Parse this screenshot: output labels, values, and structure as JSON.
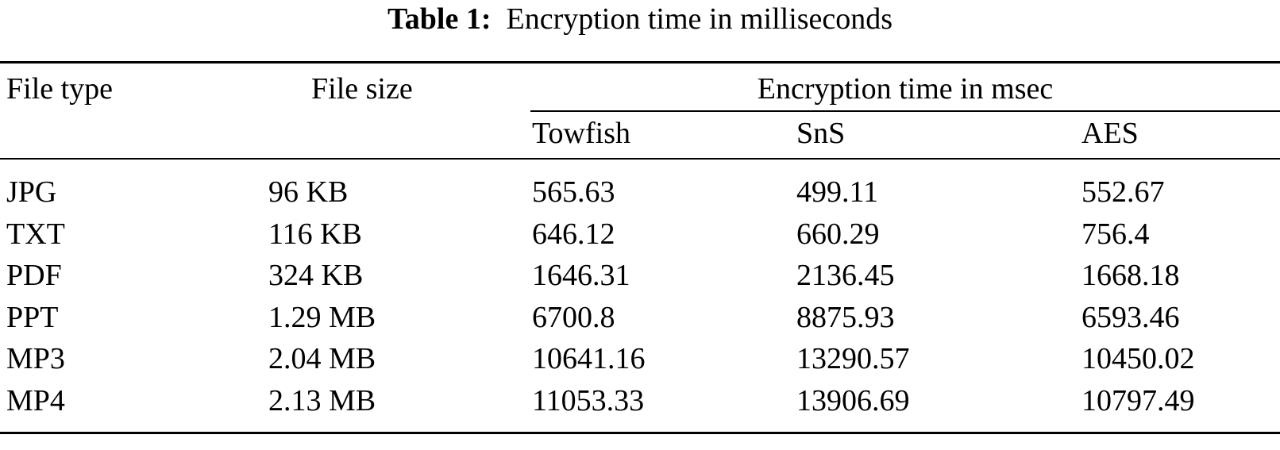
{
  "caption": {
    "label": "Table 1:",
    "text": "Encryption time in milliseconds"
  },
  "headers": {
    "file_type": "File type",
    "file_size": "File size",
    "group": "Encryption time in msec",
    "algorithms": [
      "Towfish",
      "SnS",
      "AES"
    ]
  },
  "rows": [
    {
      "type": "JPG",
      "size": "96 KB",
      "values": [
        "565.63",
        "499.11",
        "552.67"
      ]
    },
    {
      "type": "TXT",
      "size": "116 KB",
      "values": [
        "646.12",
        "660.29",
        "756.4"
      ]
    },
    {
      "type": "PDF",
      "size": "324 KB",
      "values": [
        "1646.31",
        "2136.45",
        "1668.18"
      ]
    },
    {
      "type": "PPT",
      "size": "1.29 MB",
      "values": [
        "6700.8",
        "8875.93",
        "6593.46"
      ]
    },
    {
      "type": "MP3",
      "size": "2.04 MB",
      "values": [
        "10641.16",
        "13290.57",
        "10450.02"
      ]
    },
    {
      "type": "MP4",
      "size": "2.13 MB",
      "values": [
        "11053.33",
        "13906.69",
        "10797.49"
      ]
    }
  ]
}
